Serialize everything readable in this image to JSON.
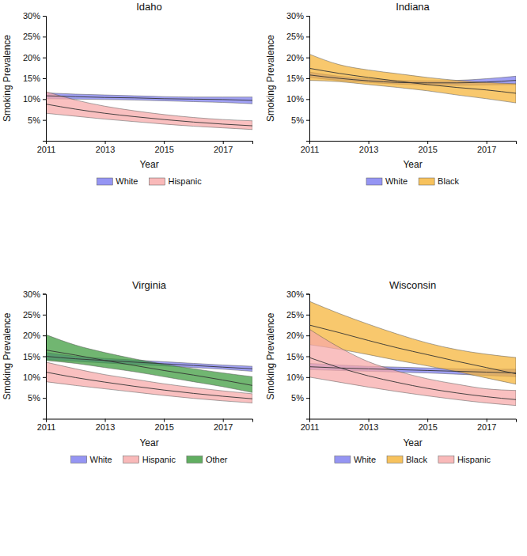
{
  "chart_data": [
    {
      "type": "line",
      "title": "Idaho",
      "x_label": "Year",
      "y_label": "Smoking Prevalence",
      "x": [
        2011,
        2012,
        2013,
        2014,
        2015,
        2016,
        2017,
        2018
      ],
      "xlim": [
        2011,
        2018
      ],
      "xticks": [
        2011,
        2013,
        2015,
        2017
      ],
      "ylim": [
        0,
        30
      ],
      "yticks": [
        {
          "value": 5,
          "label": "5%"
        },
        {
          "value": 10,
          "label": "10%"
        },
        {
          "value": 15,
          "label": "15%"
        },
        {
          "value": 20,
          "label": "20%"
        },
        {
          "value": 25,
          "label": "25%"
        },
        {
          "value": 30,
          "label": "30%"
        }
      ],
      "legend": "bottom",
      "series": [
        {
          "name": "White",
          "color": "#7b7bf0",
          "values": [
            10.8,
            10.6,
            10.4,
            10.3,
            10.1,
            10.0,
            9.9,
            9.7
          ],
          "lower": [
            10.1,
            10.0,
            9.9,
            9.8,
            9.6,
            9.4,
            9.2,
            8.9
          ],
          "upper": [
            11.5,
            11.2,
            11.0,
            10.8,
            10.6,
            10.5,
            10.5,
            10.5
          ]
        },
        {
          "name": "Hispanic",
          "color": "#f7a8a8",
          "values": [
            8.8,
            7.6,
            6.6,
            5.8,
            5.1,
            4.5,
            4.0,
            3.6
          ],
          "lower": [
            6.6,
            5.9,
            5.2,
            4.6,
            4.0,
            3.5,
            3.1,
            2.7
          ],
          "upper": [
            11.8,
            9.8,
            8.3,
            7.2,
            6.3,
            5.6,
            5.1,
            4.8
          ]
        }
      ]
    },
    {
      "type": "line",
      "title": "Indiana",
      "x_label": "Year",
      "y_label": "Smoking Prevalence",
      "x": [
        2011,
        2012,
        2013,
        2014,
        2015,
        2016,
        2017,
        2018
      ],
      "xlim": [
        2011,
        2018
      ],
      "xticks": [
        2011,
        2013,
        2015,
        2017
      ],
      "ylim": [
        0,
        30
      ],
      "yticks": [
        {
          "value": 5,
          "label": "5%"
        },
        {
          "value": 10,
          "label": "10%"
        },
        {
          "value": 15,
          "label": "15%"
        },
        {
          "value": 20,
          "label": "20%"
        },
        {
          "value": 25,
          "label": "25%"
        },
        {
          "value": 30,
          "label": "30%"
        }
      ],
      "legend": "bottom",
      "series": [
        {
          "name": "White",
          "color": "#7b7bf0",
          "values": [
            15.8,
            15.0,
            14.4,
            14.0,
            13.9,
            13.9,
            14.1,
            14.5
          ],
          "lower": [
            15.2,
            14.5,
            14.0,
            13.6,
            13.4,
            13.3,
            13.4,
            13.5
          ],
          "upper": [
            16.5,
            15.5,
            14.9,
            14.5,
            14.4,
            14.5,
            14.9,
            15.5
          ]
        },
        {
          "name": "Black",
          "color": "#f5b335",
          "values": [
            17.4,
            16.2,
            15.2,
            14.3,
            13.5,
            12.8,
            12.2,
            11.4
          ],
          "lower": [
            14.5,
            14.2,
            13.5,
            12.8,
            12.0,
            11.0,
            10.1,
            9.1
          ],
          "upper": [
            20.8,
            18.3,
            17.0,
            16.1,
            15.2,
            14.5,
            14.0,
            13.7
          ]
        }
      ]
    },
    {
      "type": "line",
      "title": "Virginia",
      "x_label": "Year",
      "y_label": "Smoking Prevalence",
      "x": [
        2011,
        2012,
        2013,
        2014,
        2015,
        2016,
        2017,
        2018
      ],
      "xlim": [
        2011,
        2018
      ],
      "xticks": [
        2011,
        2013,
        2015,
        2017
      ],
      "ylim": [
        0,
        30
      ],
      "yticks": [
        {
          "value": 5,
          "label": "5%"
        },
        {
          "value": 10,
          "label": "10%"
        },
        {
          "value": 15,
          "label": "15%"
        },
        {
          "value": 20,
          "label": "20%"
        },
        {
          "value": 25,
          "label": "25%"
        },
        {
          "value": 30,
          "label": "30%"
        }
      ],
      "legend": "bottom",
      "series": [
        {
          "name": "White",
          "color": "#7b7bf0",
          "values": [
            15.0,
            14.4,
            14.0,
            13.6,
            13.2,
            12.8,
            12.4,
            12.0
          ],
          "lower": [
            14.2,
            13.8,
            13.4,
            13.0,
            12.7,
            12.3,
            11.9,
            11.4
          ],
          "upper": [
            15.9,
            15.0,
            14.5,
            14.1,
            13.7,
            13.3,
            12.9,
            12.6
          ]
        },
        {
          "name": "Hispanic",
          "color": "#f7a8a8",
          "values": [
            11.2,
            9.9,
            8.8,
            7.8,
            6.9,
            6.1,
            5.4,
            4.8
          ],
          "lower": [
            8.9,
            8.0,
            7.2,
            6.4,
            5.6,
            4.9,
            4.3,
            3.8
          ],
          "upper": [
            13.6,
            12.0,
            10.6,
            9.5,
            8.4,
            7.5,
            6.7,
            6.0
          ]
        },
        {
          "name": "Other",
          "color": "#3a9a3a",
          "values": [
            16.5,
            15.3,
            14.0,
            12.8,
            11.6,
            10.5,
            9.3,
            8.0
          ],
          "lower": [
            14.0,
            13.3,
            12.3,
            11.3,
            10.1,
            8.9,
            7.7,
            6.3
          ],
          "upper": [
            20.2,
            17.7,
            15.9,
            14.4,
            13.1,
            12.0,
            11.0,
            10.1
          ]
        }
      ]
    },
    {
      "type": "line",
      "title": "Wisconsin",
      "x_label": "Year",
      "y_label": "Smoking Prevalence",
      "x": [
        2011,
        2012,
        2013,
        2014,
        2015,
        2016,
        2017,
        2018
      ],
      "xlim": [
        2011,
        2018
      ],
      "xticks": [
        2011,
        2013,
        2015,
        2017
      ],
      "ylim": [
        0,
        30
      ],
      "yticks": [
        {
          "value": 5,
          "label": "5%"
        },
        {
          "value": 10,
          "label": "10%"
        },
        {
          "value": 15,
          "label": "15%"
        },
        {
          "value": 20,
          "label": "20%"
        },
        {
          "value": 25,
          "label": "25%"
        },
        {
          "value": 30,
          "label": "30%"
        }
      ],
      "legend": "bottom",
      "series": [
        {
          "name": "White",
          "color": "#7b7bf0",
          "values": [
            12.5,
            12.2,
            12.0,
            11.8,
            11.6,
            11.4,
            11.2,
            11.0
          ],
          "lower": [
            11.8,
            11.6,
            11.4,
            11.2,
            11.0,
            10.7,
            10.4,
            10.1
          ],
          "upper": [
            13.3,
            12.9,
            12.6,
            12.4,
            12.2,
            12.0,
            11.9,
            11.9
          ]
        },
        {
          "name": "Black",
          "color": "#f5b335",
          "values": [
            22.5,
            20.7,
            18.8,
            17.0,
            15.4,
            13.8,
            12.3,
            10.8
          ],
          "lower": [
            17.8,
            16.7,
            15.4,
            14.0,
            12.7,
            11.3,
            9.8,
            8.3
          ],
          "upper": [
            28.2,
            25.3,
            22.7,
            20.3,
            18.2,
            16.6,
            15.5,
            14.7
          ]
        },
        {
          "name": "Hispanic",
          "color": "#f7a8a8",
          "values": [
            14.7,
            12.3,
            10.3,
            8.7,
            7.3,
            6.2,
            5.3,
            4.6
          ],
          "lower": [
            10.0,
            8.8,
            7.6,
            6.5,
            5.5,
            4.6,
            3.8,
            3.2
          ],
          "upper": [
            21.5,
            17.2,
            13.7,
            11.4,
            9.6,
            8.3,
            7.2,
            6.8
          ]
        }
      ]
    }
  ]
}
